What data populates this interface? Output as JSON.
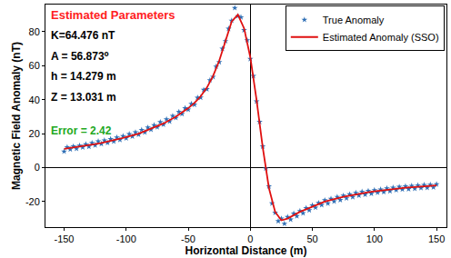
{
  "chart_data": {
    "type": "scatter",
    "x_label": "Horizontal Distance (m)",
    "y_label": "Magnetic Field Anomaly (nT)",
    "xlim": [
      -165,
      158
    ],
    "ylim": [
      -35,
      96
    ],
    "xticks": [
      -150,
      -100,
      -50,
      0,
      50,
      100,
      150
    ],
    "yticks": [
      -20,
      0,
      20,
      40,
      60,
      80
    ],
    "grid": false,
    "legend": "top-right",
    "annotations": [
      {
        "text": "Estimated Parameters",
        "color": "#ff2020"
      },
      {
        "text": "K=64.476 nT",
        "color": "#000000"
      },
      {
        "text": "A = 56.873⁰",
        "color": "#000000"
      },
      {
        "text": "h = 14.279 m",
        "color": "#000000"
      },
      {
        "text": "Z = 13.031 m",
        "color": "#000000"
      },
      {
        "text": "Error = 2.42",
        "color": "#22a822"
      }
    ],
    "series": [
      {
        "name": "True Anomaly",
        "type": "scatter",
        "marker": "star",
        "color": "#2f6fb5",
        "x": [
          -150,
          -147.5,
          -145,
          -142.5,
          -140,
          -137.5,
          -135,
          -132.5,
          -130,
          -127.5,
          -125,
          -122.5,
          -120,
          -117.5,
          -115,
          -112.5,
          -110,
          -107.5,
          -105,
          -102.5,
          -100,
          -97.5,
          -95,
          -92.5,
          -90,
          -87.5,
          -85,
          -82.5,
          -80,
          -77.5,
          -75,
          -72.5,
          -70,
          -67.5,
          -65,
          -62.5,
          -60,
          -57.5,
          -55,
          -52.5,
          -50,
          -47.5,
          -45,
          -42.5,
          -40,
          -37.5,
          -35,
          -32.5,
          -30,
          -27.5,
          -25,
          -22.5,
          -20,
          -17.5,
          -15,
          -12.5,
          -10,
          -7.5,
          -5,
          -2.5,
          0,
          2.5,
          5,
          7.5,
          10,
          12.5,
          15,
          17.5,
          20,
          22.5,
          25,
          27.5,
          30,
          32.5,
          35,
          37.5,
          40,
          42.5,
          45,
          47.5,
          50,
          52.5,
          55,
          57.5,
          60,
          62.5,
          65,
          67.5,
          70,
          72.5,
          75,
          77.5,
          80,
          82.5,
          85,
          87.5,
          90,
          92.5,
          95,
          97.5,
          100,
          102.5,
          105,
          107.5,
          110,
          112.5,
          115,
          117.5,
          120,
          122.5,
          125,
          127.5,
          130,
          132.5,
          135,
          137.5,
          140,
          142.5,
          145,
          147.5,
          150
        ],
        "values": [
          9.5,
          12,
          10.8,
          12.5,
          11.2,
          13,
          12,
          13.8,
          12.4,
          14.5,
          13.2,
          15.5,
          14,
          16,
          14.6,
          16.8,
          15.5,
          17.8,
          16.4,
          18.6,
          17.3,
          19.8,
          18.4,
          20.8,
          19.5,
          22.2,
          20.8,
          23.6,
          22.4,
          25,
          23.8,
          26.8,
          25.4,
          28.5,
          27.2,
          30.4,
          29.3,
          32.8,
          31.6,
          35,
          34.2,
          37.6,
          37.1,
          41.2,
          41.3,
          45.8,
          46.2,
          51.5,
          53.4,
          59.5,
          62.1,
          70,
          74.5,
          81.8,
          86.5,
          94,
          89.2,
          88.5,
          81,
          75,
          64,
          54,
          39,
          27,
          12.5,
          -0.5,
          -11,
          -21,
          -26.5,
          -31.5,
          -30,
          -33,
          -29,
          -30.5,
          -27,
          -28.5,
          -25.5,
          -26.8,
          -23.8,
          -25,
          -22.2,
          -23.5,
          -20.8,
          -22,
          -19.2,
          -21,
          -18.3,
          -19.8,
          -17.2,
          -19,
          -16.5,
          -18,
          -15.7,
          -17.3,
          -14.8,
          -16.4,
          -14.2,
          -15.8,
          -13.7,
          -15.3,
          -13.2,
          -14.7,
          -12.8,
          -14.3,
          -12.2,
          -13.8,
          -11.8,
          -13.2,
          -11.3,
          -12.8,
          -11,
          -12.6,
          -10.7,
          -12.3,
          -10.4,
          -12,
          -10.2,
          -11.8,
          -10,
          -11.6,
          -9.8
        ]
      },
      {
        "name": "Estimated Anomaly (SSO)",
        "type": "line",
        "line_style": "solid",
        "color": "#e01010",
        "x": [
          -150,
          -145,
          -140,
          -135,
          -130,
          -125,
          -120,
          -115,
          -110,
          -105,
          -100,
          -95,
          -90,
          -85,
          -80,
          -75,
          -70,
          -65,
          -60,
          -55,
          -50,
          -45,
          -40,
          -35,
          -30,
          -25,
          -20,
          -15,
          -10,
          -5,
          0,
          5,
          10,
          15,
          20,
          25,
          30,
          35,
          40,
          45,
          50,
          55,
          60,
          65,
          70,
          75,
          80,
          85,
          90,
          95,
          100,
          105,
          110,
          115,
          120,
          125,
          130,
          135,
          140,
          145,
          150
        ],
        "values": [
          11,
          11.5,
          12,
          12.5,
          13,
          13.8,
          14.5,
          15.2,
          16,
          17,
          18,
          19,
          20,
          21.5,
          23,
          24.5,
          26,
          28,
          30,
          32.5,
          35,
          38,
          42,
          47,
          54,
          63,
          75,
          86,
          90,
          82,
          65,
          40,
          12,
          -12,
          -26,
          -31,
          -30,
          -28,
          -26,
          -24.5,
          -23,
          -21.5,
          -20,
          -19,
          -18,
          -17.2,
          -16.5,
          -15.7,
          -15,
          -14.5,
          -14,
          -13.5,
          -13,
          -12.5,
          -12,
          -11.8,
          -11.5,
          -11.2,
          -11,
          -10.8,
          -10.5
        ]
      }
    ]
  }
}
